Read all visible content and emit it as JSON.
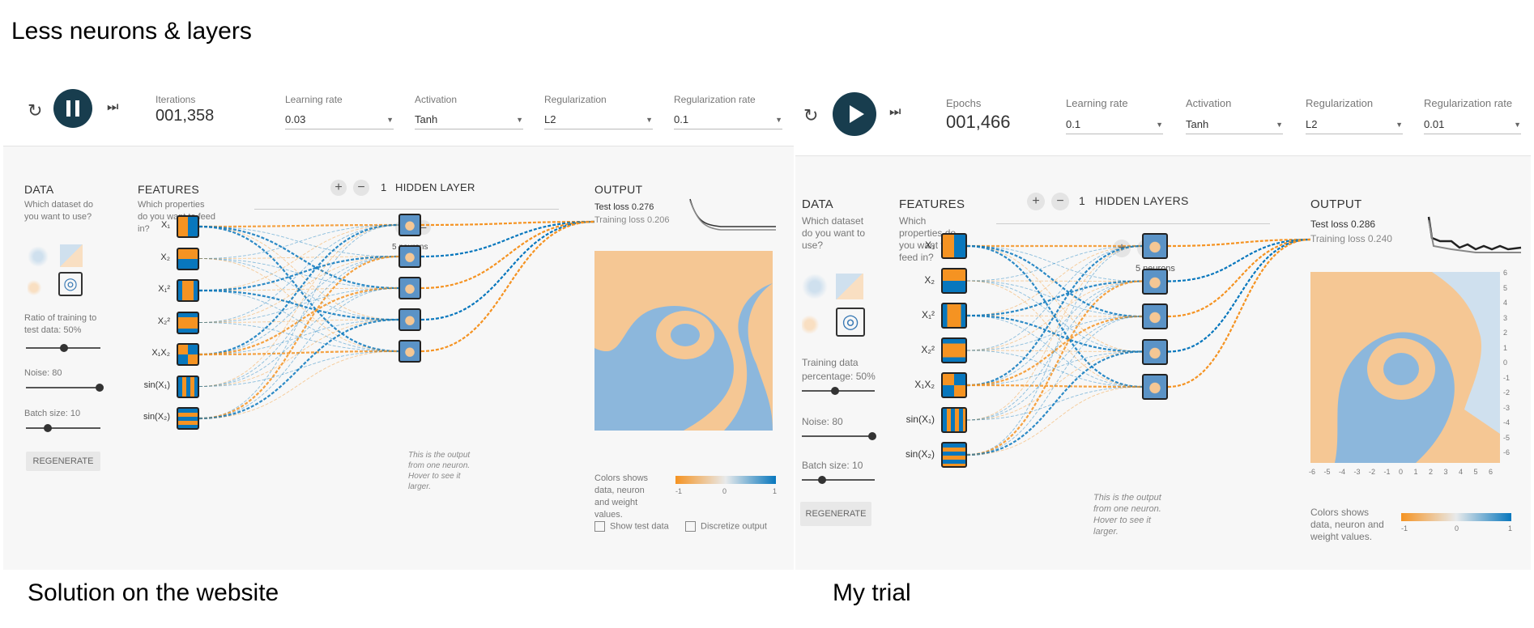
{
  "caption_top": "Less neurons & layers",
  "caption_left": "Solution on the website",
  "caption_right": "My trial",
  "colors": {
    "orange": "#f59322",
    "blue": "#0877bd",
    "dark": "#183d4e"
  },
  "left": {
    "counter_label": "Iterations",
    "counter_value": "001,358",
    "learning_rate": {
      "label": "Learning rate",
      "value": "0.03"
    },
    "activation": {
      "label": "Activation",
      "value": "Tanh"
    },
    "regularization": {
      "label": "Regularization",
      "value": "L2"
    },
    "reg_rate": {
      "label": "Regularization rate",
      "value": "0.1"
    },
    "data_title": "DATA",
    "data_sub": "Which dataset do you want to use?",
    "ratio_label": "Ratio of training to test data:",
    "ratio_value": "50%",
    "noise_label": "Noise:",
    "noise_value": "80",
    "batch_label": "Batch size:",
    "batch_value": "10",
    "regen": "REGENERATE",
    "features_title": "FEATURES",
    "features_sub": "Which properties do you want to feed in?",
    "layers_count": "1",
    "layers_label": "HIDDEN LAYER",
    "neurons_label": "5 neurons",
    "output_title": "OUTPUT",
    "test_loss": "Test loss 0.276",
    "train_loss": "Training loss 0.206",
    "note": "This is the output from one neuron. Hover to see it larger.",
    "colors_text": "Colors shows data, neuron and weight values.",
    "scale": [
      "-1",
      "0",
      "1"
    ],
    "show_test": "Show test data",
    "discretize": "Discretize output",
    "plus": "+",
    "minus": "−"
  },
  "right": {
    "counter_label": "Epochs",
    "counter_value": "001,466",
    "learning_rate": {
      "label": "Learning rate",
      "value": "0.1"
    },
    "activation": {
      "label": "Activation",
      "value": "Tanh"
    },
    "regularization": {
      "label": "Regularization",
      "value": "L2"
    },
    "reg_rate": {
      "label": "Regularization rate",
      "value": "0.01"
    },
    "data_title": "DATA",
    "data_sub": "Which dataset do you want to use?",
    "ratio_label": "Training data percentage:",
    "ratio_value": "50%",
    "noise_label": "Noise:",
    "noise_value": "80",
    "batch_label": "Batch size:",
    "batch_value": "10",
    "regen": "REGENERATE",
    "features_title": "FEATURES",
    "features_sub": "Which properties do you want to feed in?",
    "layers_count": "1",
    "layers_label": "HIDDEN LAYERS",
    "neurons_label": "5 neurons",
    "output_title": "OUTPUT",
    "test_loss": "Test loss 0.286",
    "train_loss": "Training loss 0.240",
    "note": "This is the output from one neuron. Hover to see it larger.",
    "colors_text": "Colors shows data, neuron and weight values.",
    "scale": [
      "-1",
      "0",
      "1"
    ],
    "axis_ticks": [
      "-6",
      "-5",
      "-4",
      "-3",
      "-2",
      "-1",
      "0",
      "1",
      "2",
      "3",
      "4",
      "5",
      "6"
    ],
    "plus": "+",
    "minus": "−"
  },
  "features": [
    "X₁",
    "X₂",
    "X₁²",
    "X₂²",
    "X₁X₂",
    "sin(X₁)",
    "sin(X₂)"
  ]
}
